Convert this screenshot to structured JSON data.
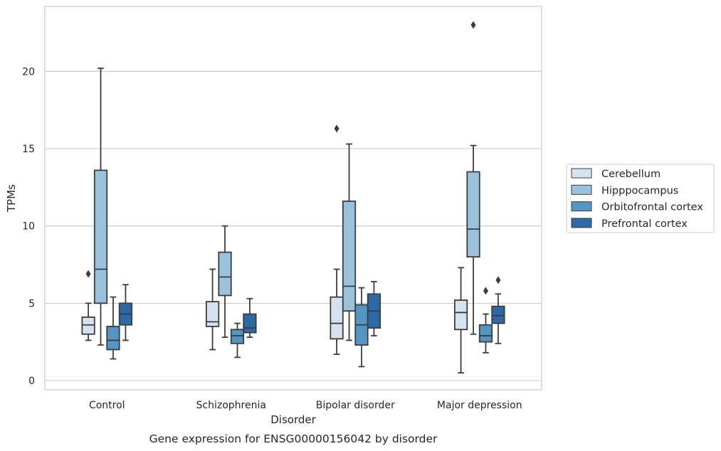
{
  "chart_data": {
    "type": "box",
    "xlabel": "Disorder",
    "ylabel": "TPMs",
    "caption": "Gene expression for ENSG00000156042 by disorder",
    "categories": [
      "Control",
      "Schizophrenia",
      "Bipolar disorder",
      "Major depression"
    ],
    "ylim": [
      -0.6,
      24.2
    ],
    "yticks": [
      0,
      5,
      10,
      15,
      20
    ],
    "grid": "horizontal",
    "legend_position": "right",
    "series": [
      {
        "name": "Cerebellum",
        "color": "#d4e2f1",
        "boxes": [
          {
            "whisker_low": 2.6,
            "q1": 3.0,
            "median": 3.6,
            "q3": 4.1,
            "whisker_high": 5.0,
            "outliers": [
              6.9
            ]
          },
          {
            "whisker_low": 2.0,
            "q1": 3.5,
            "median": 3.8,
            "q3": 5.1,
            "whisker_high": 7.2,
            "outliers": []
          },
          {
            "whisker_low": 1.7,
            "q1": 2.7,
            "median": 3.7,
            "q3": 5.4,
            "whisker_high": 7.2,
            "outliers": [
              16.3
            ]
          },
          {
            "whisker_low": 0.5,
            "q1": 3.3,
            "median": 4.4,
            "q3": 5.2,
            "whisker_high": 7.3,
            "outliers": []
          }
        ]
      },
      {
        "name": "Hipppocampus",
        "color": "#9ac2dc",
        "boxes": [
          {
            "whisker_low": 2.3,
            "q1": 5.0,
            "median": 7.2,
            "q3": 13.6,
            "whisker_high": 20.2,
            "outliers": []
          },
          {
            "whisker_low": 2.8,
            "q1": 5.5,
            "median": 6.7,
            "q3": 8.3,
            "whisker_high": 10.0,
            "outliers": []
          },
          {
            "whisker_low": 2.6,
            "q1": 4.5,
            "median": 6.1,
            "q3": 11.6,
            "whisker_high": 15.3,
            "outliers": []
          },
          {
            "whisker_low": 3.0,
            "q1": 8.0,
            "median": 9.8,
            "q3": 13.5,
            "whisker_high": 15.2,
            "outliers": [
              23.0
            ]
          }
        ]
      },
      {
        "name": "Orbitofrontal cortex",
        "color": "#5296c3",
        "boxes": [
          {
            "whisker_low": 1.4,
            "q1": 2.0,
            "median": 2.6,
            "q3": 3.5,
            "whisker_high": 5.4,
            "outliers": []
          },
          {
            "whisker_low": 1.5,
            "q1": 2.4,
            "median": 2.9,
            "q3": 3.3,
            "whisker_high": 3.7,
            "outliers": []
          },
          {
            "whisker_low": 0.9,
            "q1": 2.3,
            "median": 3.6,
            "q3": 4.9,
            "whisker_high": 6.0,
            "outliers": []
          },
          {
            "whisker_low": 1.8,
            "q1": 2.5,
            "median": 2.9,
            "q3": 3.6,
            "whisker_high": 4.3,
            "outliers": [
              5.8
            ]
          }
        ]
      },
      {
        "name": "Prefrontal cortex",
        "color": "#2a6aa7",
        "boxes": [
          {
            "whisker_low": 2.6,
            "q1": 3.6,
            "median": 4.3,
            "q3": 5.0,
            "whisker_high": 6.2,
            "outliers": []
          },
          {
            "whisker_low": 2.8,
            "q1": 3.1,
            "median": 3.4,
            "q3": 4.3,
            "whisker_high": 5.3,
            "outliers": []
          },
          {
            "whisker_low": 2.9,
            "q1": 3.4,
            "median": 4.5,
            "q3": 5.6,
            "whisker_high": 6.4,
            "outliers": []
          },
          {
            "whisker_low": 2.4,
            "q1": 3.7,
            "median": 4.2,
            "q3": 4.8,
            "whisker_high": 5.6,
            "outliers": [
              6.5
            ]
          }
        ]
      }
    ]
  }
}
